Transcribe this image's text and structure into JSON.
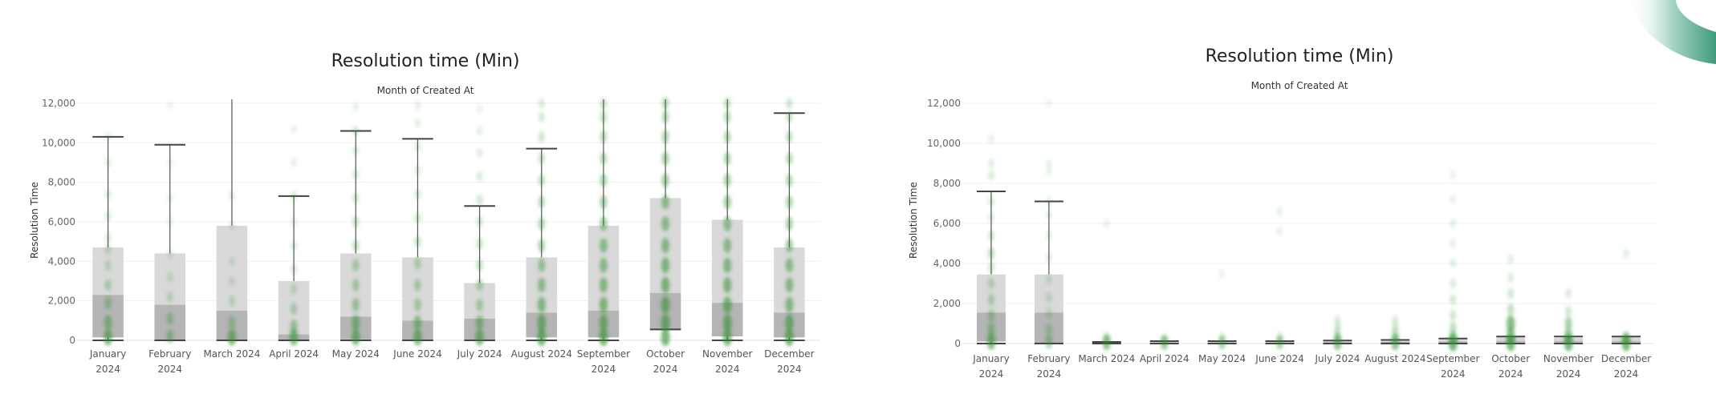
{
  "charts": [
    {
      "title": "Resolution time (Min)",
      "subtitle": "Month of Created At",
      "ylabel": "Resolution Time",
      "yticks": [
        "12,000",
        "10,000",
        "8,000",
        "6,000",
        "4,000",
        "2,000",
        "0"
      ],
      "months": [
        [
          "January",
          "2024"
        ],
        [
          "February",
          "2024"
        ],
        [
          "March 2024",
          ""
        ],
        [
          "April 2024",
          ""
        ],
        [
          "May 2024",
          ""
        ],
        [
          "June 2024",
          ""
        ],
        [
          "July 2024",
          ""
        ],
        [
          "August 2024",
          ""
        ],
        [
          "September",
          "2024"
        ],
        [
          "October",
          "2024"
        ],
        [
          "November",
          "2024"
        ],
        [
          "December",
          "2024"
        ]
      ]
    },
    {
      "title": "Resolution time (Min)",
      "subtitle": "Month of Created At",
      "ylabel": "Resolution Time",
      "yticks": [
        "12,000",
        "10,000",
        "8,000",
        "6,000",
        "4,000",
        "2,000",
        "0"
      ],
      "months": [
        [
          "January",
          "2024"
        ],
        [
          "February",
          "2024"
        ],
        [
          "March 2024",
          ""
        ],
        [
          "April 2024",
          ""
        ],
        [
          "May 2024",
          ""
        ],
        [
          "June 2024",
          ""
        ],
        [
          "July 2024",
          ""
        ],
        [
          "August 2024",
          ""
        ],
        [
          "September",
          "2024"
        ],
        [
          "October",
          "2024"
        ],
        [
          "November",
          "2024"
        ],
        [
          "December",
          "2024"
        ]
      ]
    }
  ],
  "chart_data": [
    {
      "type": "box",
      "title": "Resolution time (Min)",
      "subtitle": "Month of Created At",
      "ylabel": "Resolution Time",
      "ylim": [
        0,
        12200
      ],
      "grid": true,
      "categories": [
        "January 2024",
        "February 2024",
        "March 2024",
        "April 2024",
        "May 2024",
        "June 2024",
        "July 2024",
        "August 2024",
        "September 2024",
        "October 2024",
        "November 2024",
        "December 2024"
      ],
      "boxes": [
        {
          "lower_whisker": 0,
          "q1": 150,
          "median": 2300,
          "q3": 4700,
          "upper_whisker": 10300
        },
        {
          "lower_whisker": 0,
          "q1": 0,
          "median": 1800,
          "q3": 4400,
          "upper_whisker": 9900
        },
        {
          "lower_whisker": 0,
          "q1": 0,
          "median": 1500,
          "q3": 5800,
          "upper_whisker": 12200
        },
        {
          "lower_whisker": 0,
          "q1": 0,
          "median": 300,
          "q3": 3000,
          "upper_whisker": 7300
        },
        {
          "lower_whisker": 0,
          "q1": 50,
          "median": 1200,
          "q3": 4400,
          "upper_whisker": 10600
        },
        {
          "lower_whisker": 0,
          "q1": 0,
          "median": 1000,
          "q3": 4200,
          "upper_whisker": 10200
        },
        {
          "lower_whisker": 0,
          "q1": 0,
          "median": 1100,
          "q3": 2900,
          "upper_whisker": 6800
        },
        {
          "lower_whisker": 0,
          "q1": 150,
          "median": 1400,
          "q3": 4200,
          "upper_whisker": 9700
        },
        {
          "lower_whisker": 0,
          "q1": 150,
          "median": 1500,
          "q3": 5800,
          "upper_whisker": 12200
        },
        {
          "lower_whisker": 550,
          "q1": 550,
          "median": 2400,
          "q3": 7200,
          "upper_whisker": 12200
        },
        {
          "lower_whisker": 0,
          "q1": 200,
          "median": 1900,
          "q3": 6100,
          "upper_whisker": 12200
        },
        {
          "lower_whisker": 0,
          "q1": 150,
          "median": 1400,
          "q3": 4700,
          "upper_whisker": 11500
        }
      ],
      "points": [
        {
          "month": 0,
          "y": [
            150,
            900,
            1900,
            2800,
            3800,
            4600,
            5200,
            6300,
            7400,
            9000,
            10300
          ],
          "density": [
            0.9,
            0.7,
            0.5,
            0.4,
            0.3,
            0.3,
            0.2,
            0.2,
            0.2,
            0.15,
            0.1
          ]
        },
        {
          "month": 1,
          "y": [
            200,
            1100,
            2200,
            3200,
            4400,
            6000,
            7200,
            9000,
            11900
          ],
          "density": [
            0.6,
            0.5,
            0.3,
            0.2,
            0.15,
            0.1,
            0.1,
            0.08,
            0.06
          ]
        },
        {
          "month": 2,
          "y": [
            150,
            900,
            2000,
            3000,
            4000,
            5800,
            7300
          ],
          "density": [
            0.9,
            0.5,
            0.3,
            0.2,
            0.15,
            0.12,
            0.15
          ]
        },
        {
          "month": 3,
          "y": [
            150,
            700,
            1600,
            2600,
            3600,
            4800,
            6000,
            7300,
            9000,
            10700
          ],
          "density": [
            0.9,
            0.6,
            0.4,
            0.3,
            0.25,
            0.2,
            0.15,
            0.2,
            0.1,
            0.08
          ]
        },
        {
          "month": 4,
          "y": [
            150,
            900,
            1800,
            2800,
            3800,
            4800,
            6000,
            7200,
            8400,
            9600,
            10600,
            11800
          ],
          "density": [
            0.9,
            0.8,
            0.6,
            0.5,
            0.45,
            0.4,
            0.35,
            0.3,
            0.25,
            0.2,
            0.25,
            0.1
          ]
        },
        {
          "month": 5,
          "y": [
            150,
            900,
            1800,
            2800,
            3900,
            5000,
            6200,
            7400,
            8600,
            9800,
            11000,
            11900
          ],
          "density": [
            0.9,
            0.7,
            0.5,
            0.45,
            0.4,
            0.35,
            0.3,
            0.25,
            0.2,
            0.2,
            0.15,
            0.1
          ]
        },
        {
          "month": 6,
          "y": [
            150,
            900,
            1800,
            2800,
            3800,
            4900,
            6000,
            7100,
            8300,
            9500,
            10600,
            11700
          ],
          "density": [
            0.9,
            0.7,
            0.5,
            0.45,
            0.4,
            0.35,
            0.3,
            0.28,
            0.2,
            0.15,
            0.12,
            0.08
          ]
        },
        {
          "month": 7,
          "y": [
            150,
            900,
            1800,
            2800,
            3800,
            4800,
            5900,
            7000,
            8100,
            9200,
            10300,
            11300,
            12000
          ],
          "density": [
            1,
            0.9,
            0.8,
            0.7,
            0.6,
            0.55,
            0.5,
            0.45,
            0.4,
            0.35,
            0.3,
            0.25,
            0.2
          ]
        },
        {
          "month": 8,
          "y": [
            150,
            900,
            1800,
            2800,
            3800,
            4800,
            5900,
            7000,
            8100,
            9200,
            10300,
            11300,
            12000
          ],
          "density": [
            1,
            0.9,
            0.85,
            0.8,
            0.75,
            0.7,
            0.65,
            0.6,
            0.55,
            0.5,
            0.45,
            0.4,
            0.35
          ]
        },
        {
          "month": 9,
          "y": [
            150,
            900,
            1800,
            2800,
            3800,
            4800,
            5900,
            7000,
            8100,
            9200,
            10300,
            11300,
            12000
          ],
          "density": [
            1,
            1,
            0.95,
            0.9,
            0.85,
            0.8,
            0.75,
            0.7,
            0.65,
            0.6,
            0.55,
            0.5,
            0.45
          ]
        },
        {
          "month": 10,
          "y": [
            150,
            900,
            1800,
            2800,
            3800,
            4800,
            5900,
            7000,
            8100,
            9200,
            10300,
            11300,
            12000
          ],
          "density": [
            1,
            0.95,
            0.9,
            0.85,
            0.8,
            0.75,
            0.7,
            0.65,
            0.6,
            0.55,
            0.5,
            0.45,
            0.4
          ]
        },
        {
          "month": 11,
          "y": [
            150,
            900,
            1800,
            2800,
            3800,
            4800,
            5900,
            7000,
            8100,
            9200,
            10300,
            11300,
            12000
          ],
          "density": [
            1,
            0.9,
            0.8,
            0.75,
            0.7,
            0.65,
            0.6,
            0.55,
            0.5,
            0.45,
            0.4,
            0.35,
            0.3
          ]
        }
      ]
    },
    {
      "type": "box",
      "title": "Resolution time (Min)",
      "subtitle": "Month of Created At",
      "ylabel": "Resolution Time",
      "ylim": [
        0,
        12200
      ],
      "grid": true,
      "categories": [
        "January 2024",
        "February 2024",
        "March 2024",
        "April 2024",
        "May 2024",
        "June 2024",
        "July 2024",
        "August 2024",
        "September 2024",
        "October 2024",
        "November 2024",
        "December 2024"
      ],
      "boxes": [
        {
          "lower_whisker": 0,
          "q1": 100,
          "median": 1550,
          "q3": 3450,
          "upper_whisker": 7600
        },
        {
          "lower_whisker": 0,
          "q1": 0,
          "median": 1550,
          "q3": 3450,
          "upper_whisker": 7100
        },
        {
          "lower_whisker": 0,
          "q1": 0,
          "median": 20,
          "q3": 50,
          "upper_whisker": 80
        },
        {
          "lower_whisker": 0,
          "q1": 0,
          "median": 40,
          "q3": 80,
          "upper_whisker": 120
        },
        {
          "lower_whisker": 0,
          "q1": 0,
          "median": 40,
          "q3": 80,
          "upper_whisker": 120
        },
        {
          "lower_whisker": 0,
          "q1": 0,
          "median": 40,
          "q3": 80,
          "upper_whisker": 120
        },
        {
          "lower_whisker": 0,
          "q1": 0,
          "median": 60,
          "q3": 100,
          "upper_whisker": 150
        },
        {
          "lower_whisker": 0,
          "q1": 0,
          "median": 80,
          "q3": 130,
          "upper_whisker": 180
        },
        {
          "lower_whisker": 0,
          "q1": 0,
          "median": 100,
          "q3": 200,
          "upper_whisker": 250
        },
        {
          "lower_whisker": 0,
          "q1": 50,
          "median": 130,
          "q3": 300,
          "upper_whisker": 350
        },
        {
          "lower_whisker": 0,
          "q1": 50,
          "median": 130,
          "q3": 280,
          "upper_whisker": 350
        },
        {
          "lower_whisker": 0,
          "q1": 50,
          "median": 130,
          "q3": 300,
          "upper_whisker": 350
        }
      ],
      "points": [
        {
          "month": 0,
          "y": [
            100,
            700,
            1400,
            2200,
            3000,
            3800,
            4500,
            5400,
            6300,
            7100,
            8400,
            9000,
            10200
          ],
          "density": [
            0.9,
            0.6,
            0.5,
            0.4,
            0.35,
            0.3,
            0.4,
            0.3,
            0.2,
            0.2,
            0.2,
            0.15,
            0.1
          ]
        },
        {
          "month": 1,
          "y": [
            100,
            700,
            1500,
            2300,
            3200,
            4300,
            5400,
            6400,
            7100,
            8600,
            9000,
            12000
          ],
          "density": [
            0.6,
            0.4,
            0.3,
            0.25,
            0.2,
            0.15,
            0.15,
            0.12,
            0.12,
            0.1,
            0.1,
            0.06
          ]
        },
        {
          "month": 2,
          "y": [
            50,
            300,
            6000
          ],
          "density": [
            0.8,
            0.3,
            0.1
          ]
        },
        {
          "month": 3,
          "y": [
            50,
            200
          ],
          "density": [
            0.7,
            0.2
          ]
        },
        {
          "month": 4,
          "y": [
            50,
            300,
            3500
          ],
          "density": [
            0.6,
            0.2,
            0.08
          ]
        },
        {
          "month": 5,
          "y": [
            50,
            300,
            5600,
            6600
          ],
          "density": [
            0.6,
            0.25,
            0.1,
            0.1
          ]
        },
        {
          "month": 6,
          "y": [
            50,
            300,
            600,
            900,
            1200
          ],
          "density": [
            0.8,
            0.4,
            0.3,
            0.2,
            0.15
          ]
        },
        {
          "month": 7,
          "y": [
            50,
            300,
            600,
            900,
            1200
          ],
          "density": [
            0.8,
            0.4,
            0.3,
            0.2,
            0.15
          ]
        },
        {
          "month": 8,
          "y": [
            50,
            300,
            800,
            1400,
            2200,
            3000,
            4000,
            5000,
            6000,
            7200,
            8400
          ],
          "density": [
            1,
            0.6,
            0.4,
            0.3,
            0.25,
            0.2,
            0.15,
            0.12,
            0.12,
            0.1,
            0.08
          ]
        },
        {
          "month": 9,
          "y": [
            50,
            400,
            1000,
            1700,
            2500,
            3300,
            4200
          ],
          "density": [
            1,
            0.8,
            0.9,
            0.4,
            0.3,
            0.2,
            0.15
          ]
        },
        {
          "month": 10,
          "y": [
            50,
            400,
            1000,
            1600,
            2500
          ],
          "density": [
            1,
            0.7,
            0.6,
            0.3,
            0.2
          ]
        },
        {
          "month": 11,
          "y": [
            50,
            300,
            4500
          ],
          "density": [
            1,
            0.5,
            0.15
          ]
        }
      ]
    }
  ]
}
